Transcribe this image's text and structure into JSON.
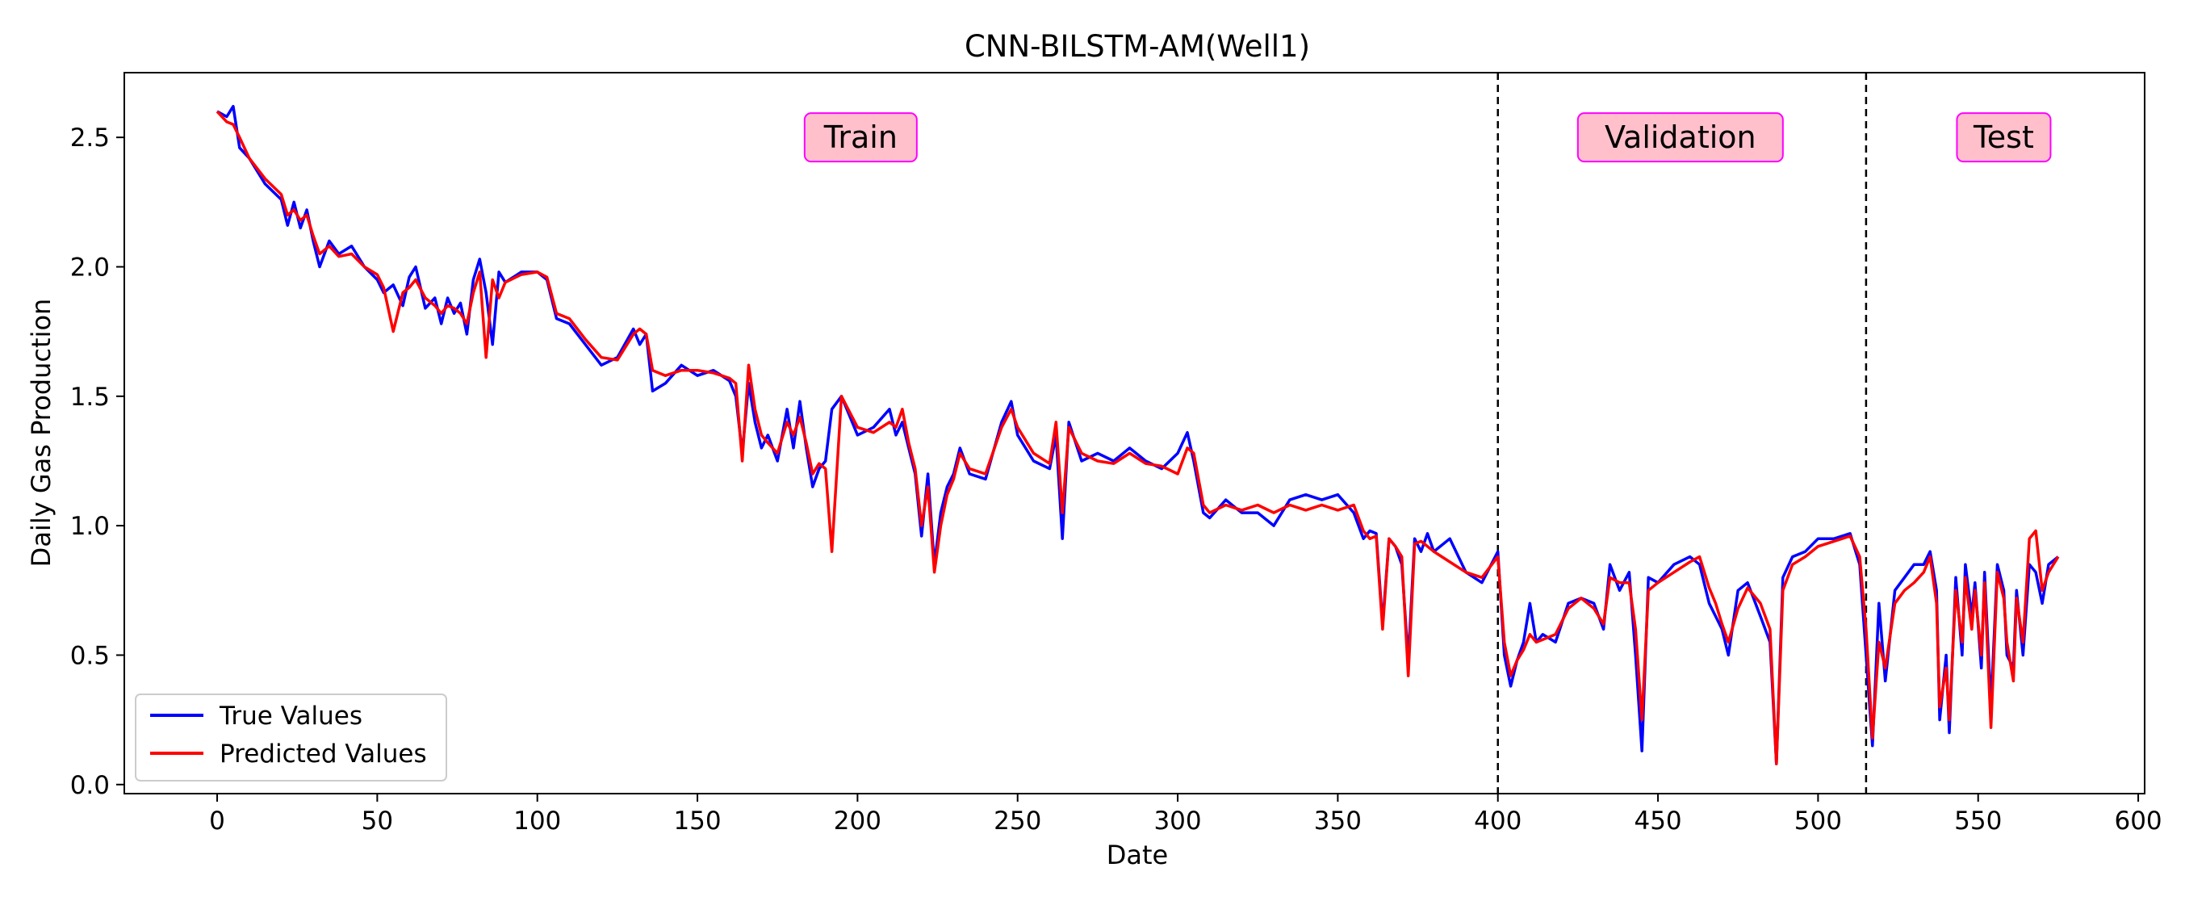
{
  "chart_data": {
    "type": "line",
    "title": "CNN-BILSTM-AM(Well1)",
    "xlabel": "Date",
    "ylabel": "Daily Gas Production",
    "xlim": [
      -29,
      602
    ],
    "ylim": [
      -0.035,
      2.75
    ],
    "xticks": [
      0,
      50,
      100,
      150,
      200,
      250,
      300,
      350,
      400,
      450,
      500,
      550,
      600
    ],
    "yticks": [
      0.0,
      0.5,
      1.0,
      1.5,
      2.0,
      2.5
    ],
    "xtick_labels": [
      "0",
      "50",
      "100",
      "150",
      "200",
      "250",
      "300",
      "350",
      "400",
      "450",
      "500",
      "550",
      "600"
    ],
    "ytick_labels": [
      "0.0",
      "0.5",
      "1.0",
      "1.5",
      "2.0",
      "2.5"
    ],
    "grid": false,
    "legend_position": "lower-left",
    "split_lines": [
      400,
      515
    ],
    "regions": [
      {
        "label": "Train",
        "x": 201
      },
      {
        "label": "Validation",
        "x": 457
      },
      {
        "label": "Test",
        "x": 558
      }
    ],
    "region_label_colors": {
      "fill": "#ffc0cb",
      "border": "#ff00ff"
    },
    "series": [
      {
        "name": "True Values",
        "color": "#0000ff",
        "x": [
          0,
          3,
          5,
          7,
          10,
          15,
          20,
          22,
          24,
          26,
          28,
          30,
          32,
          35,
          38,
          42,
          46,
          50,
          52,
          55,
          58,
          60,
          62,
          65,
          68,
          70,
          72,
          74,
          76,
          78,
          80,
          82,
          84,
          86,
          88,
          90,
          95,
          100,
          103,
          106,
          110,
          115,
          120,
          125,
          130,
          132,
          134,
          136,
          140,
          145,
          150,
          155,
          160,
          162,
          164,
          166,
          168,
          170,
          172,
          175,
          178,
          180,
          182,
          184,
          186,
          188,
          190,
          192,
          195,
          200,
          205,
          210,
          212,
          214,
          216,
          218,
          220,
          222,
          224,
          226,
          228,
          230,
          232,
          235,
          240,
          245,
          248,
          250,
          255,
          260,
          262,
          264,
          266,
          270,
          275,
          280,
          285,
          290,
          295,
          300,
          303,
          305,
          308,
          310,
          315,
          320,
          325,
          330,
          335,
          340,
          345,
          350,
          355,
          358,
          360,
          362,
          364,
          366,
          368,
          370,
          372,
          374,
          376,
          378,
          380,
          385,
          390,
          395,
          400,
          402,
          404,
          406,
          408,
          410,
          412,
          414,
          418,
          422,
          426,
          430,
          433,
          435,
          438,
          441,
          443,
          445,
          447,
          450,
          455,
          460,
          463,
          466,
          468,
          470,
          472,
          475,
          478,
          482,
          485,
          487,
          489,
          492,
          496,
          500,
          505,
          510,
          513,
          515,
          517,
          519,
          521,
          524,
          527,
          530,
          533,
          535,
          537,
          538,
          540,
          541,
          543,
          545,
          546,
          548,
          549,
          551,
          552,
          554,
          556,
          558,
          559,
          561,
          562,
          564,
          566,
          568,
          570,
          572,
          575
        ],
        "y": [
          2.6,
          2.58,
          2.62,
          2.46,
          2.42,
          2.32,
          2.26,
          2.16,
          2.25,
          2.15,
          2.22,
          2.1,
          2.0,
          2.1,
          2.05,
          2.08,
          2.0,
          1.95,
          1.9,
          1.93,
          1.85,
          1.96,
          2.0,
          1.84,
          1.88,
          1.78,
          1.88,
          1.82,
          1.86,
          1.74,
          1.95,
          2.03,
          1.9,
          1.7,
          1.98,
          1.94,
          1.98,
          1.98,
          1.95,
          1.8,
          1.78,
          1.7,
          1.62,
          1.65,
          1.76,
          1.7,
          1.74,
          1.52,
          1.55,
          1.62,
          1.58,
          1.6,
          1.56,
          1.5,
          1.28,
          1.55,
          1.4,
          1.3,
          1.35,
          1.25,
          1.45,
          1.3,
          1.48,
          1.3,
          1.15,
          1.22,
          1.25,
          1.45,
          1.5,
          1.35,
          1.38,
          1.45,
          1.35,
          1.4,
          1.3,
          1.2,
          0.96,
          1.2,
          0.85,
          1.05,
          1.15,
          1.2,
          1.3,
          1.2,
          1.18,
          1.4,
          1.48,
          1.35,
          1.25,
          1.22,
          1.35,
          0.95,
          1.4,
          1.25,
          1.28,
          1.25,
          1.3,
          1.25,
          1.22,
          1.28,
          1.36,
          1.25,
          1.05,
          1.03,
          1.1,
          1.05,
          1.05,
          1.0,
          1.1,
          1.12,
          1.1,
          1.12,
          1.05,
          0.95,
          0.98,
          0.97,
          0.62,
          0.95,
          0.92,
          0.85,
          0.48,
          0.95,
          0.9,
          0.97,
          0.9,
          0.95,
          0.82,
          0.78,
          0.9,
          0.5,
          0.38,
          0.48,
          0.55,
          0.7,
          0.55,
          0.58,
          0.55,
          0.7,
          0.72,
          0.7,
          0.6,
          0.85,
          0.75,
          0.82,
          0.5,
          0.13,
          0.8,
          0.78,
          0.85,
          0.88,
          0.85,
          0.7,
          0.65,
          0.6,
          0.5,
          0.75,
          0.78,
          0.65,
          0.55,
          0.08,
          0.8,
          0.88,
          0.9,
          0.95,
          0.95,
          0.97,
          0.85,
          0.5,
          0.15,
          0.7,
          0.4,
          0.75,
          0.8,
          0.85,
          0.85,
          0.9,
          0.75,
          0.25,
          0.5,
          0.2,
          0.8,
          0.5,
          0.85,
          0.65,
          0.78,
          0.45,
          0.82,
          0.3,
          0.85,
          0.75,
          0.5,
          0.45,
          0.75,
          0.5,
          0.85,
          0.82,
          0.7,
          0.85,
          0.88
        ]
      },
      {
        "name": "Predicted Values",
        "color": "#ff0000",
        "x": [
          0,
          3,
          5,
          7,
          10,
          15,
          20,
          22,
          24,
          26,
          28,
          30,
          32,
          35,
          38,
          42,
          46,
          50,
          52,
          55,
          58,
          60,
          62,
          65,
          68,
          70,
          72,
          74,
          76,
          78,
          80,
          82,
          84,
          86,
          88,
          90,
          95,
          100,
          103,
          106,
          110,
          115,
          120,
          125,
          130,
          132,
          134,
          136,
          140,
          145,
          150,
          155,
          160,
          162,
          164,
          166,
          168,
          170,
          172,
          175,
          178,
          180,
          182,
          184,
          186,
          188,
          190,
          192,
          195,
          200,
          205,
          210,
          212,
          214,
          216,
          218,
          220,
          222,
          224,
          226,
          228,
          230,
          232,
          235,
          240,
          245,
          248,
          250,
          255,
          260,
          262,
          264,
          266,
          270,
          275,
          280,
          285,
          290,
          295,
          300,
          303,
          305,
          308,
          310,
          315,
          320,
          325,
          330,
          335,
          340,
          345,
          350,
          355,
          358,
          360,
          362,
          364,
          366,
          368,
          370,
          372,
          374,
          376,
          378,
          380,
          385,
          390,
          395,
          400,
          402,
          404,
          406,
          408,
          410,
          412,
          414,
          418,
          422,
          426,
          430,
          433,
          435,
          438,
          441,
          443,
          445,
          447,
          450,
          455,
          460,
          463,
          466,
          468,
          470,
          472,
          475,
          478,
          482,
          485,
          487,
          489,
          492,
          496,
          500,
          505,
          510,
          513,
          515,
          517,
          519,
          521,
          524,
          527,
          530,
          533,
          535,
          537,
          538,
          540,
          541,
          543,
          545,
          546,
          548,
          549,
          551,
          552,
          554,
          556,
          558,
          559,
          561,
          562,
          564,
          566,
          568,
          570,
          572,
          575
        ],
        "y": [
          2.6,
          2.56,
          2.55,
          2.5,
          2.42,
          2.34,
          2.28,
          2.2,
          2.22,
          2.18,
          2.2,
          2.12,
          2.05,
          2.08,
          2.04,
          2.05,
          2.0,
          1.97,
          1.92,
          1.75,
          1.9,
          1.92,
          1.95,
          1.88,
          1.85,
          1.82,
          1.85,
          1.84,
          1.82,
          1.78,
          1.9,
          1.98,
          1.65,
          1.95,
          1.88,
          1.94,
          1.97,
          1.98,
          1.96,
          1.82,
          1.8,
          1.72,
          1.65,
          1.64,
          1.74,
          1.76,
          1.74,
          1.6,
          1.58,
          1.6,
          1.6,
          1.59,
          1.57,
          1.55,
          1.25,
          1.62,
          1.45,
          1.35,
          1.32,
          1.28,
          1.4,
          1.35,
          1.42,
          1.32,
          1.2,
          1.24,
          1.22,
          0.9,
          1.5,
          1.38,
          1.36,
          1.4,
          1.38,
          1.45,
          1.32,
          1.22,
          1.0,
          1.15,
          0.82,
          1.0,
          1.12,
          1.18,
          1.28,
          1.22,
          1.2,
          1.38,
          1.45,
          1.38,
          1.28,
          1.24,
          1.4,
          1.05,
          1.38,
          1.28,
          1.25,
          1.24,
          1.28,
          1.24,
          1.23,
          1.2,
          1.3,
          1.28,
          1.08,
          1.05,
          1.08,
          1.06,
          1.08,
          1.05,
          1.08,
          1.06,
          1.08,
          1.06,
          1.08,
          0.98,
          0.95,
          0.96,
          0.6,
          0.95,
          0.92,
          0.88,
          0.42,
          0.93,
          0.94,
          0.92,
          0.9,
          0.86,
          0.82,
          0.8,
          0.88,
          0.55,
          0.42,
          0.48,
          0.52,
          0.58,
          0.55,
          0.56,
          0.58,
          0.68,
          0.72,
          0.68,
          0.62,
          0.8,
          0.78,
          0.78,
          0.6,
          0.25,
          0.75,
          0.78,
          0.82,
          0.86,
          0.88,
          0.76,
          0.7,
          0.62,
          0.55,
          0.68,
          0.76,
          0.7,
          0.6,
          0.08,
          0.75,
          0.85,
          0.88,
          0.92,
          0.94,
          0.96,
          0.88,
          0.6,
          0.18,
          0.55,
          0.45,
          0.7,
          0.75,
          0.78,
          0.82,
          0.88,
          0.7,
          0.3,
          0.45,
          0.25,
          0.75,
          0.55,
          0.8,
          0.6,
          0.75,
          0.5,
          0.78,
          0.22,
          0.82,
          0.72,
          0.55,
          0.4,
          0.72,
          0.55,
          0.95,
          0.98,
          0.75,
          0.82,
          0.88
        ]
      }
    ]
  }
}
